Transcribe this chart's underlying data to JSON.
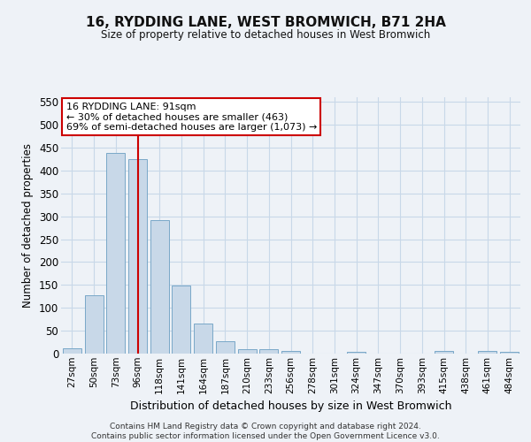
{
  "title": "16, RYDDING LANE, WEST BROMWICH, B71 2HA",
  "subtitle": "Size of property relative to detached houses in West Bromwich",
  "xlabel": "Distribution of detached houses by size in West Bromwich",
  "ylabel": "Number of detached properties",
  "categories": [
    "27sqm",
    "50sqm",
    "73sqm",
    "96sqm",
    "118sqm",
    "141sqm",
    "164sqm",
    "187sqm",
    "210sqm",
    "233sqm",
    "256sqm",
    "278sqm",
    "301sqm",
    "324sqm",
    "347sqm",
    "370sqm",
    "393sqm",
    "415sqm",
    "438sqm",
    "461sqm",
    "484sqm"
  ],
  "values": [
    12,
    127,
    438,
    425,
    292,
    148,
    65,
    27,
    10,
    9,
    5,
    0,
    0,
    4,
    0,
    0,
    0,
    5,
    0,
    5,
    3
  ],
  "bar_color": "#c8d8e8",
  "bar_edge_color": "#7aa8c8",
  "grid_color": "#c8d8e8",
  "background_color": "#eef2f7",
  "vline_color": "#cc0000",
  "vline_pos": 3.5,
  "annotation_text": "16 RYDDING LANE: 91sqm\n← 30% of detached houses are smaller (463)\n69% of semi-detached houses are larger (1,073) →",
  "annotation_box_color": "#ffffff",
  "annotation_box_edge": "#cc0000",
  "ylim": [
    0,
    560
  ],
  "yticks": [
    0,
    50,
    100,
    150,
    200,
    250,
    300,
    350,
    400,
    450,
    500,
    550
  ],
  "footer_line1": "Contains HM Land Registry data © Crown copyright and database right 2024.",
  "footer_line2": "Contains public sector information licensed under the Open Government Licence v3.0."
}
